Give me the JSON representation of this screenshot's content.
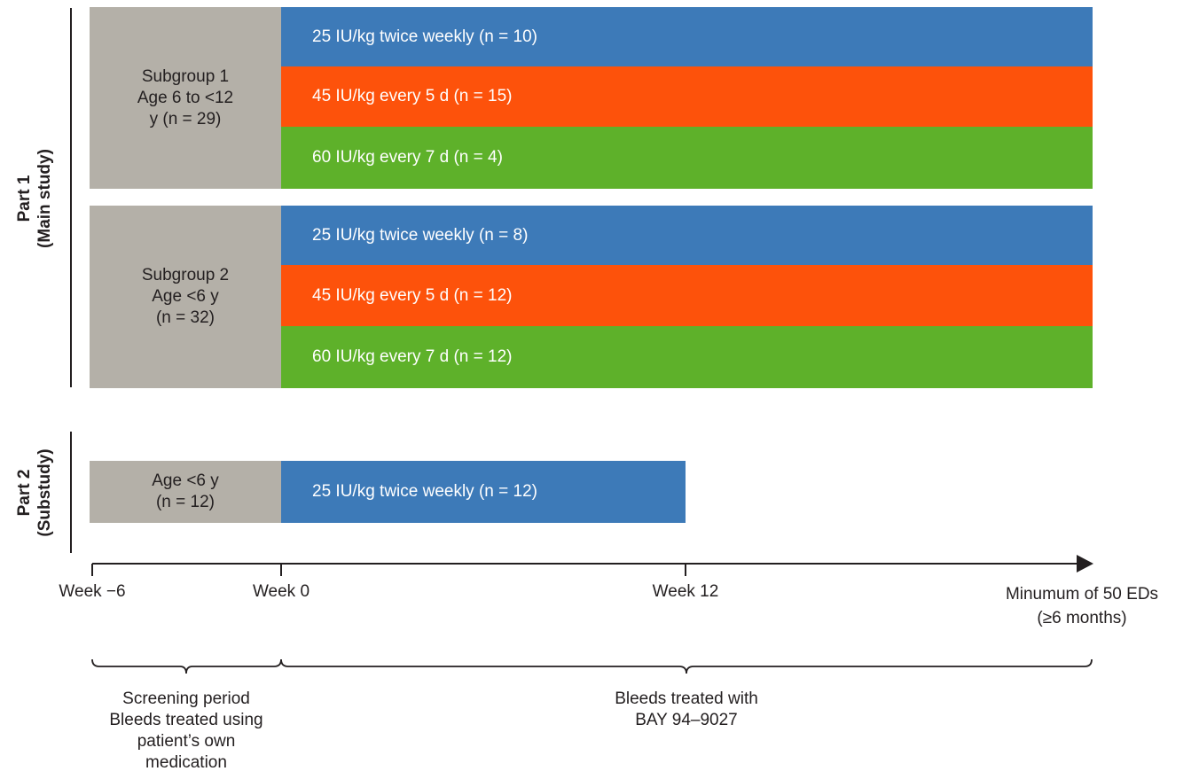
{
  "part1": {
    "label": "Part 1\n(Main study)",
    "subgroup1": {
      "label": "Subgroup 1\nAge 6 to <12\ny (n = 29)",
      "arms": [
        "25 IU/kg twice weekly (n = 10)",
        "45 IU/kg every 5 d (n = 15)",
        "60 IU/kg every 7 d (n = 4)"
      ]
    },
    "subgroup2": {
      "label": "Subgroup 2\nAge <6 y\n(n = 32)",
      "arms": [
        "25 IU/kg twice weekly (n = 8)",
        "45 IU/kg every 5 d (n = 12)",
        "60 IU/kg every 7 d (n = 12)"
      ]
    }
  },
  "part2": {
    "label": "Part 2\n(Substudy)",
    "group_label": "Age <6 y\n(n = 12)",
    "arm": "25 IU/kg twice weekly (n = 12)"
  },
  "timeline": {
    "ticks": [
      "Week −6",
      "Week 0",
      "Week 12",
      "Minumum of 50 EDs\n(≥6 months)"
    ]
  },
  "periods": {
    "screening": "Screening period\nBleeds treated using\npatient’s own\nmedication",
    "treatment": "Bleeds treated with\nBAY 94–9027"
  },
  "colors": {
    "screening_gray": "#b4b0a8",
    "arm_25_blue": "#3d7ab8",
    "arm_45_orange": "#fd520b",
    "arm_60_green": "#5eb12a"
  }
}
